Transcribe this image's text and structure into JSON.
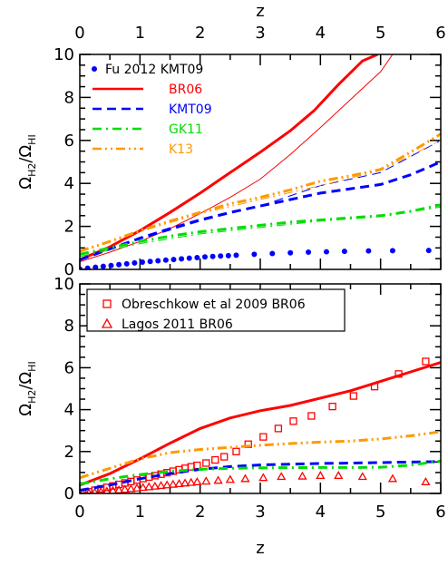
{
  "chart_data": [
    {
      "type": "line",
      "panel": "top",
      "xlim": [
        0,
        6
      ],
      "ylim": [
        0,
        10
      ],
      "xlabel": "",
      "top_xlabel": "z",
      "ylabel": "Ω_H2/Ω_HI",
      "ylabel_main": "Ω",
      "ylabel_sub1": "H2",
      "ylabel_mid": "/Ω",
      "ylabel_sub2": "HI",
      "x_ticks": [
        "0",
        "1",
        "2",
        "3",
        "4",
        "5",
        "6"
      ],
      "y_ticks": [
        "0",
        "2",
        "4",
        "6",
        "8",
        "10"
      ],
      "legend_position": "top-left",
      "series": [
        {
          "name": "Fu 2012 KMT09",
          "style": "dots",
          "color": "#0000ff",
          "x": [
            0.0,
            0.13,
            0.26,
            0.39,
            0.52,
            0.65,
            0.78,
            0.91,
            1.04,
            1.17,
            1.3,
            1.43,
            1.56,
            1.69,
            1.82,
            1.95,
            2.08,
            2.21,
            2.34,
            2.47,
            2.6,
            2.9,
            3.2,
            3.5,
            3.8,
            4.1,
            4.4,
            4.8,
            5.2,
            5.8
          ],
          "y": [
            0.02,
            0.06,
            0.1,
            0.14,
            0.18,
            0.22,
            0.26,
            0.3,
            0.34,
            0.37,
            0.4,
            0.43,
            0.46,
            0.49,
            0.52,
            0.55,
            0.58,
            0.6,
            0.62,
            0.64,
            0.66,
            0.7,
            0.74,
            0.77,
            0.8,
            0.82,
            0.84,
            0.86,
            0.87,
            0.88
          ]
        },
        {
          "name": "BR06",
          "style": "solid",
          "color": "#ff0000",
          "x": [
            0,
            0.5,
            1,
            1.5,
            2,
            2.5,
            3,
            3.5,
            3.9,
            4.3,
            4.7,
            4.95
          ],
          "y": [
            0.45,
            1.05,
            1.8,
            2.65,
            3.55,
            4.5,
            5.45,
            6.45,
            7.4,
            8.6,
            9.7,
            10.0
          ],
          "thin_x": [
            0,
            0.5,
            1,
            1.5,
            2,
            2.5,
            3,
            3.5,
            4,
            4.5,
            5,
            5.2
          ],
          "thin_y": [
            0.35,
            0.8,
            1.3,
            1.9,
            2.6,
            3.35,
            4.2,
            5.35,
            6.6,
            7.9,
            9.2,
            10.0
          ]
        },
        {
          "name": "KMT09",
          "style": "dashed",
          "color": "#0000ff",
          "x": [
            0,
            0.5,
            1,
            1.5,
            2,
            2.5,
            3,
            3.5,
            4,
            4.5,
            5,
            5.5,
            6
          ],
          "y": [
            0.45,
            0.95,
            1.45,
            1.9,
            2.3,
            2.65,
            2.95,
            3.25,
            3.55,
            3.75,
            3.95,
            4.4,
            5.0
          ],
          "thin_x": [
            0,
            1,
            2,
            3,
            4,
            5,
            6
          ],
          "thin_y": [
            0.45,
            1.4,
            2.25,
            2.95,
            3.9,
            4.5,
            6.0
          ]
        },
        {
          "name": "GK11",
          "style": "dashdot",
          "color": "#00dd00",
          "x": [
            0,
            0.5,
            1,
            1.5,
            2,
            2.5,
            3,
            3.5,
            4,
            4.5,
            5,
            5.5,
            6
          ],
          "y": [
            0.7,
            1.0,
            1.3,
            1.55,
            1.75,
            1.9,
            2.05,
            2.2,
            2.3,
            2.4,
            2.5,
            2.7,
            3.0
          ],
          "thin_x": [
            0,
            1,
            2,
            3,
            4,
            5,
            6
          ],
          "thin_y": [
            0.6,
            1.2,
            1.65,
            1.95,
            2.25,
            2.45,
            2.9
          ]
        },
        {
          "name": "K13",
          "style": "dashdotdot",
          "color": "#ff9900",
          "x": [
            0,
            0.5,
            1,
            1.5,
            2,
            2.5,
            3,
            3.5,
            4,
            4.5,
            5,
            5.5,
            6
          ],
          "y": [
            0.85,
            1.3,
            1.8,
            2.25,
            2.65,
            3.05,
            3.35,
            3.7,
            4.1,
            4.35,
            4.65,
            5.45,
            6.3
          ],
          "thin_x": [
            0,
            1,
            2,
            3,
            4,
            5,
            6
          ],
          "thin_y": [
            0.8,
            1.75,
            2.6,
            3.25,
            3.9,
            4.6,
            6.0
          ]
        }
      ]
    },
    {
      "type": "line",
      "panel": "bottom",
      "xlim": [
        0,
        6
      ],
      "ylim": [
        0,
        10
      ],
      "xlabel": "z",
      "ylabel": "Ω_H2/Ω_HI",
      "ylabel_main": "Ω",
      "ylabel_sub1": "H2",
      "ylabel_mid": "/Ω",
      "ylabel_sub2": "HI",
      "x_ticks": [
        "0",
        "1",
        "2",
        "3",
        "4",
        "5",
        "6"
      ],
      "y_ticks": [
        "0",
        "2",
        "4",
        "6",
        "8",
        "10"
      ],
      "legend_position": "top-left",
      "series": [
        {
          "name": "Obreschkow et al 2009 BR06",
          "style": "squares",
          "color": "#ff0000",
          "x": [
            0.05,
            0.15,
            0.25,
            0.35,
            0.45,
            0.55,
            0.65,
            0.75,
            0.85,
            0.95,
            1.05,
            1.15,
            1.25,
            1.35,
            1.45,
            1.55,
            1.65,
            1.75,
            1.85,
            1.95,
            2.1,
            2.25,
            2.4,
            2.6,
            2.8,
            3.05,
            3.3,
            3.55,
            3.85,
            4.2,
            4.55,
            4.9,
            5.3,
            5.75
          ],
          "y": [
            0.02,
            0.08,
            0.15,
            0.22,
            0.29,
            0.36,
            0.43,
            0.5,
            0.57,
            0.64,
            0.71,
            0.78,
            0.85,
            0.92,
            0.99,
            1.06,
            1.13,
            1.2,
            1.27,
            1.34,
            1.45,
            1.6,
            1.75,
            2.0,
            2.35,
            2.7,
            3.1,
            3.45,
            3.7,
            4.15,
            4.65,
            5.1,
            5.7,
            6.3
          ]
        },
        {
          "name": "Lagos 2011 BR06",
          "style": "triangles",
          "color": "#ff0000",
          "x": [
            0.05,
            0.15,
            0.25,
            0.35,
            0.45,
            0.55,
            0.65,
            0.75,
            0.85,
            0.95,
            1.05,
            1.15,
            1.25,
            1.35,
            1.45,
            1.55,
            1.65,
            1.75,
            1.85,
            1.95,
            2.1,
            2.3,
            2.5,
            2.75,
            3.05,
            3.35,
            3.7,
            4.0,
            4.3,
            4.7,
            5.2,
            5.75
          ],
          "y": [
            0.0,
            0.02,
            0.05,
            0.08,
            0.1,
            0.13,
            0.16,
            0.19,
            0.22,
            0.25,
            0.28,
            0.31,
            0.34,
            0.37,
            0.4,
            0.43,
            0.46,
            0.49,
            0.52,
            0.55,
            0.58,
            0.62,
            0.66,
            0.7,
            0.75,
            0.8,
            0.82,
            0.85,
            0.85,
            0.8,
            0.7,
            0.55
          ]
        },
        {
          "name": "BR06",
          "style": "solid",
          "color": "#ff0000",
          "x": [
            0,
            0.5,
            1,
            1.5,
            2,
            2.5,
            3,
            3.5,
            4,
            4.5,
            5,
            5.5,
            6
          ],
          "y": [
            0.4,
            0.95,
            1.65,
            2.4,
            3.1,
            3.6,
            3.95,
            4.2,
            4.55,
            4.9,
            5.35,
            5.8,
            6.25
          ]
        },
        {
          "name": "KMT09",
          "style": "dashed",
          "color": "#0000ff",
          "x": [
            0,
            0.5,
            1,
            1.5,
            2,
            2.5,
            3,
            3.5,
            4,
            4.5,
            5,
            5.5,
            6
          ],
          "y": [
            0.15,
            0.4,
            0.7,
            0.95,
            1.15,
            1.28,
            1.36,
            1.4,
            1.43,
            1.45,
            1.47,
            1.5,
            1.52
          ]
        },
        {
          "name": "GK11",
          "style": "dashdot",
          "color": "#00dd00",
          "x": [
            0,
            0.5,
            1,
            1.5,
            2,
            2.5,
            3,
            3.5,
            4,
            4.5,
            5,
            5.5,
            6
          ],
          "y": [
            0.45,
            0.7,
            0.9,
            1.05,
            1.15,
            1.2,
            1.22,
            1.23,
            1.24,
            1.24,
            1.25,
            1.35,
            1.55
          ]
        },
        {
          "name": "K13",
          "style": "dashdotdot",
          "color": "#ff9900",
          "x": [
            0,
            0.5,
            1,
            1.5,
            2,
            2.5,
            3,
            3.5,
            4,
            4.5,
            5,
            5.5,
            6
          ],
          "y": [
            0.75,
            1.2,
            1.65,
            1.95,
            2.1,
            2.2,
            2.3,
            2.38,
            2.45,
            2.5,
            2.6,
            2.75,
            2.95
          ]
        }
      ]
    }
  ]
}
